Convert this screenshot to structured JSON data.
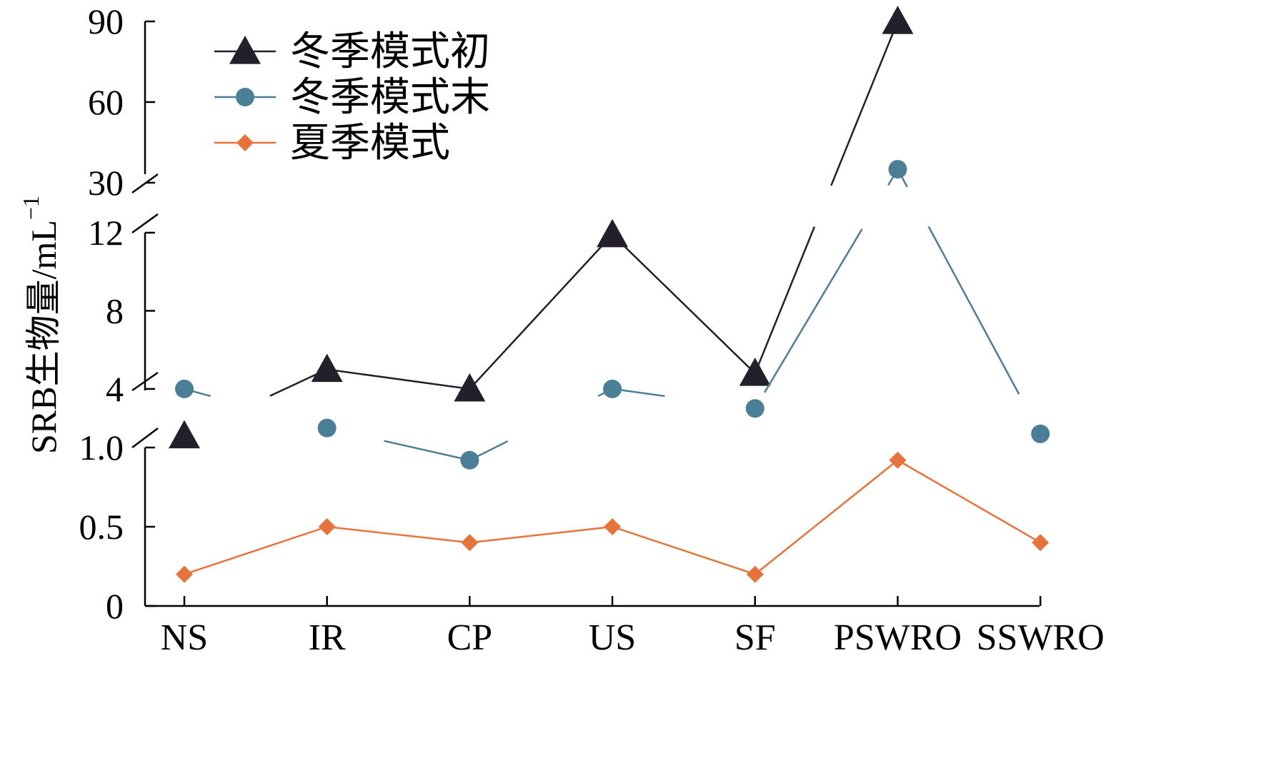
{
  "chart_data": {
    "type": "line",
    "title": "",
    "xlabel": "",
    "ylabel": "SRB生物量/mL",
    "ylabel_superscript": "−1",
    "categories": [
      "NS",
      "IR",
      "CP",
      "US",
      "SF",
      "PSWRO",
      "SSWRO"
    ],
    "y_axis": {
      "broken": true,
      "segments": [
        {
          "range": [
            0,
            1.0
          ],
          "ticks": [
            "0",
            "0.5",
            "1.0"
          ]
        },
        {
          "range": [
            1.0,
            12
          ],
          "ticks": [
            "4",
            "8",
            "12"
          ]
        },
        {
          "range": [
            30,
            90
          ],
          "ticks": [
            "30",
            "60",
            "90"
          ]
        }
      ]
    },
    "legend": {
      "position": "top-left"
    },
    "series": [
      {
        "name": "冬季模式初",
        "marker": "triangle",
        "color": "#231f2b",
        "values": [
          1.6,
          5.0,
          4.0,
          11.9,
          4.8,
          90.0,
          null
        ]
      },
      {
        "name": "冬季模式末",
        "marker": "circle",
        "color": "#4b7f97",
        "values": [
          4.0,
          2.0,
          0.92,
          4.0,
          3.0,
          35.0,
          1.7
        ]
      },
      {
        "name": "夏季模式",
        "marker": "diamond",
        "color": "#e8733a",
        "values": [
          0.2,
          0.5,
          0.4,
          0.5,
          0.2,
          0.92,
          0.4
        ]
      }
    ]
  }
}
